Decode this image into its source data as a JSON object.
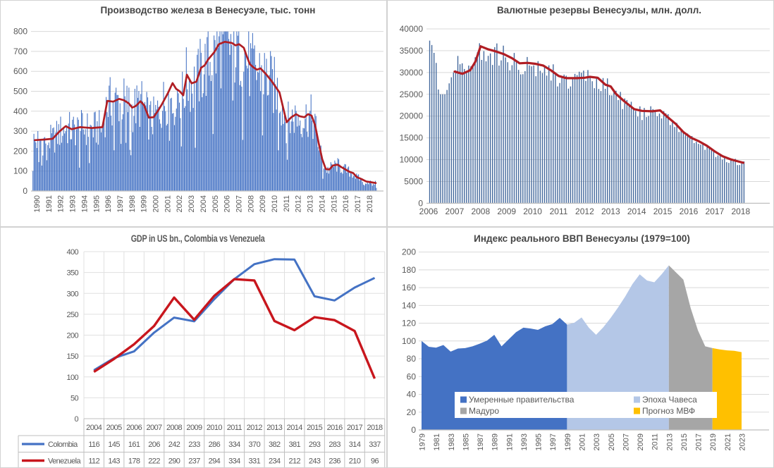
{
  "panels": {
    "iron": {
      "title": "Производство железа в Венесуэле, тыс. тонн"
    },
    "reserves": {
      "title": "Валютные резервы Венесуэлы, млн. долл."
    },
    "gdp": {
      "title": "GDP in US bn., Colombia vs Venezuela"
    },
    "index": {
      "title": "Индекс реального ВВП Венесуэлы (1979=100)"
    }
  },
  "colors": {
    "bar_blue": "#4472C4",
    "reserve_bar": "#44699D",
    "trend_red": "#B01E24",
    "gdp_colombia": "#4472C4",
    "gdp_venezuela": "#C8161D",
    "moderate_blue": "#4472C4",
    "chavez_blue": "#B4C7E7",
    "maduro_gray": "#A6A6A6",
    "forecast_yellow": "#FFC000",
    "grid": "#D9D9D9",
    "axis": "#BFBFBF",
    "label": "#595959"
  },
  "chart_data": [
    {
      "id": "iron",
      "type": "bar",
      "title": "Производство железа в Венесуэле, тыс. тонн",
      "frequency": "monthly",
      "x_range": [
        1990,
        2019
      ],
      "ylim": [
        0,
        800
      ],
      "yticks": [
        0,
        100,
        200,
        300,
        400,
        500,
        600,
        700,
        800
      ],
      "xticks": [
        "1990",
        "1991",
        "1992",
        "1993",
        "1994",
        "1995",
        "1996",
        "1997",
        "1998",
        "1999",
        "2000",
        "2001",
        "2002",
        "2003",
        "2004",
        "2005",
        "2006",
        "2007",
        "2008",
        "2009",
        "2010",
        "2011",
        "2012",
        "2013",
        "2014",
        "2015",
        "2016",
        "2017",
        "2018"
      ],
      "trend_ma_points": [
        [
          1990.2,
          255
        ],
        [
          1991.0,
          258
        ],
        [
          1991.7,
          262
        ],
        [
          1992.3,
          300
        ],
        [
          1992.8,
          325
        ],
        [
          1993.3,
          310
        ],
        [
          1994.0,
          320
        ],
        [
          1995.0,
          316
        ],
        [
          1995.9,
          320
        ],
        [
          1996.3,
          452
        ],
        [
          1996.8,
          448
        ],
        [
          1997.3,
          462
        ],
        [
          1997.7,
          455
        ],
        [
          1998.1,
          440
        ],
        [
          1998.4,
          418
        ],
        [
          1998.7,
          426
        ],
        [
          1999.1,
          450
        ],
        [
          1999.4,
          430
        ],
        [
          1999.8,
          368
        ],
        [
          2000.2,
          370
        ],
        [
          2000.6,
          405
        ],
        [
          2000.9,
          435
        ],
        [
          2001.4,
          490
        ],
        [
          2001.8,
          541
        ],
        [
          2002.1,
          512
        ],
        [
          2002.4,
          500
        ],
        [
          2002.7,
          480
        ],
        [
          2003.0,
          583
        ],
        [
          2003.4,
          540
        ],
        [
          2003.8,
          548
        ],
        [
          2004.2,
          618
        ],
        [
          2004.5,
          630
        ],
        [
          2004.8,
          660
        ],
        [
          2005.3,
          695
        ],
        [
          2005.7,
          736
        ],
        [
          2006.2,
          748
        ],
        [
          2006.8,
          742
        ],
        [
          2007.1,
          730
        ],
        [
          2007.4,
          736
        ],
        [
          2007.8,
          718
        ],
        [
          2008.0,
          683
        ],
        [
          2008.3,
          636
        ],
        [
          2008.6,
          620
        ],
        [
          2008.9,
          608
        ],
        [
          2009.2,
          615
        ],
        [
          2009.6,
          590
        ],
        [
          2010.1,
          554
        ],
        [
          2010.5,
          520
        ],
        [
          2010.8,
          494
        ],
        [
          2011.1,
          420
        ],
        [
          2011.4,
          345
        ],
        [
          2011.8,
          370
        ],
        [
          2012.2,
          385
        ],
        [
          2012.5,
          375
        ],
        [
          2012.9,
          370
        ],
        [
          2013.2,
          385
        ],
        [
          2013.5,
          378
        ],
        [
          2013.8,
          330
        ],
        [
          2014.1,
          240
        ],
        [
          2014.4,
          160
        ],
        [
          2014.7,
          110
        ],
        [
          2015.0,
          108
        ],
        [
          2015.3,
          128
        ],
        [
          2015.7,
          132
        ],
        [
          2016.0,
          120
        ],
        [
          2016.3,
          110
        ],
        [
          2016.7,
          96
        ],
        [
          2017.0,
          90
        ],
        [
          2017.3,
          70
        ],
        [
          2017.7,
          60
        ],
        [
          2018.1,
          48
        ],
        [
          2018.5,
          44
        ],
        [
          2018.9,
          40
        ]
      ],
      "bars": {
        "count": 348,
        "derived_from": "trend_ma_points",
        "variation_factor": [
          0.68,
          1.28
        ],
        "dip_chance": 0.07,
        "dip_factor": 0.5,
        "clamp": [
          15,
          800
        ]
      }
    },
    {
      "id": "reserves",
      "type": "bar",
      "title": "Валютные резервы Венесуэлы, млн. долл.",
      "frequency": "monthly",
      "x_range": [
        2006,
        2018.2
      ],
      "ylim": [
        0,
        40000
      ],
      "yticks": [
        0,
        5000,
        10000,
        15000,
        20000,
        25000,
        30000,
        35000,
        40000
      ],
      "xticks": [
        "2006",
        "2007",
        "2008",
        "2009",
        "2010",
        "2011",
        "2012",
        "2013",
        "2014",
        "2015",
        "2016",
        "2017",
        "2018"
      ],
      "bars_2006_2007": [
        37300,
        36300,
        34500,
        32200,
        26100,
        25000,
        25000,
        25000,
        26000,
        27500,
        28900,
        30000,
        30500,
        33800,
        31900,
        32100,
        30800,
        30300,
        31600,
        31400,
        31200,
        33500,
        34600,
        36700
      ],
      "trend_ma_points": [
        [
          2007.0,
          30200
        ],
        [
          2007.3,
          29700
        ],
        [
          2007.6,
          30500
        ],
        [
          2007.8,
          32500
        ],
        [
          2008.0,
          36000
        ],
        [
          2008.3,
          35300
        ],
        [
          2008.6,
          34800
        ],
        [
          2008.9,
          34200
        ],
        [
          2009.2,
          33300
        ],
        [
          2009.5,
          32100
        ],
        [
          2009.8,
          32200
        ],
        [
          2010.1,
          32000
        ],
        [
          2010.4,
          31600
        ],
        [
          2010.7,
          30500
        ],
        [
          2011.0,
          29200
        ],
        [
          2011.3,
          28700
        ],
        [
          2011.7,
          28700
        ],
        [
          2012.0,
          28800
        ],
        [
          2012.2,
          29000
        ],
        [
          2012.5,
          28800
        ],
        [
          2012.8,
          27200
        ],
        [
          2013.0,
          26800
        ],
        [
          2013.2,
          25100
        ],
        [
          2013.5,
          23500
        ],
        [
          2013.9,
          21600
        ],
        [
          2014.2,
          21200
        ],
        [
          2014.6,
          21100
        ],
        [
          2014.9,
          21300
        ],
        [
          2015.2,
          19700
        ],
        [
          2015.5,
          18200
        ],
        [
          2015.8,
          16300
        ],
        [
          2016.1,
          15000
        ],
        [
          2016.4,
          14200
        ],
        [
          2016.7,
          13200
        ],
        [
          2017.0,
          11900
        ],
        [
          2017.3,
          10800
        ],
        [
          2017.6,
          10100
        ],
        [
          2017.9,
          9600
        ],
        [
          2018.1,
          9300
        ]
      ],
      "bars": {
        "count": 146,
        "derived_from": "trend_ma_points",
        "variation_factor": [
          0.9,
          1.06
        ],
        "clamp": [
          0,
          40400
        ]
      }
    },
    {
      "id": "gdp",
      "type": "line",
      "title": "GDP in US bn., Colombia vs Venezuela",
      "categories": [
        "2004",
        "2005",
        "2006",
        "2007",
        "2008",
        "2009",
        "2010",
        "2011",
        "2012",
        "2013",
        "2014",
        "2015",
        "2016",
        "2017",
        "2018"
      ],
      "series": [
        {
          "name": "Colombia",
          "color": "#4472C4",
          "values": [
            116,
            145,
            161,
            206,
            242,
            233,
            286,
            334,
            370,
            382,
            381,
            293,
            283,
            314,
            337
          ]
        },
        {
          "name": "Venezuela",
          "color": "#C8161D",
          "values": [
            112,
            143,
            178,
            222,
            290,
            237,
            294,
            334,
            331,
            234,
            212,
            243,
            236,
            210,
            96
          ]
        }
      ],
      "ylim": [
        0,
        400
      ],
      "yticks": [
        0,
        50,
        100,
        150,
        200,
        250,
        300,
        350,
        400
      ],
      "grid": true,
      "plot_background": "diagonal-hatch",
      "legend_position": "table-left",
      "data_table": true
    },
    {
      "id": "index",
      "type": "area",
      "title": "Индекс реального ВВП Венесуэлы (1979=100)",
      "x_start": 1979,
      "x_end": 2023,
      "values": [
        100,
        93.5,
        92.5,
        95.5,
        88,
        91.5,
        92,
        94,
        97,
        100.5,
        107,
        94,
        102,
        110,
        115,
        114,
        112.5,
        116.5,
        119,
        126,
        118.5,
        120.5,
        126.5,
        115,
        107,
        115.5,
        126,
        137.5,
        150,
        164,
        175,
        168,
        166,
        175,
        185,
        177,
        169,
        137,
        112,
        94,
        92,
        90.5,
        89.5,
        89,
        87.5
      ],
      "segments": [
        {
          "label": "Умеренные правительства",
          "from": 1979,
          "to": 1999,
          "color": "#4472C4"
        },
        {
          "label": "Эпоха Чавеса",
          "from": 1999,
          "to": 2013,
          "color": "#B4C7E7"
        },
        {
          "label": "Мадуро",
          "from": 2013,
          "to": 2019,
          "color": "#A6A6A6"
        },
        {
          "label": "Прогноз МВФ",
          "from": 2019,
          "to": 2023,
          "color": "#FFC000"
        }
      ],
      "ylim": [
        0,
        200
      ],
      "yticks": [
        0,
        20,
        40,
        60,
        80,
        100,
        120,
        140,
        160,
        180,
        200
      ],
      "xticks": [
        "1979",
        "1981",
        "1983",
        "1985",
        "1987",
        "1989",
        "1991",
        "1993",
        "1995",
        "1997",
        "1999",
        "2001",
        "2003",
        "2005",
        "2007",
        "2009",
        "2011",
        "2013",
        "2015",
        "2017",
        "2019",
        "2021",
        "2023"
      ],
      "legend_position": "bottom-center"
    }
  ]
}
